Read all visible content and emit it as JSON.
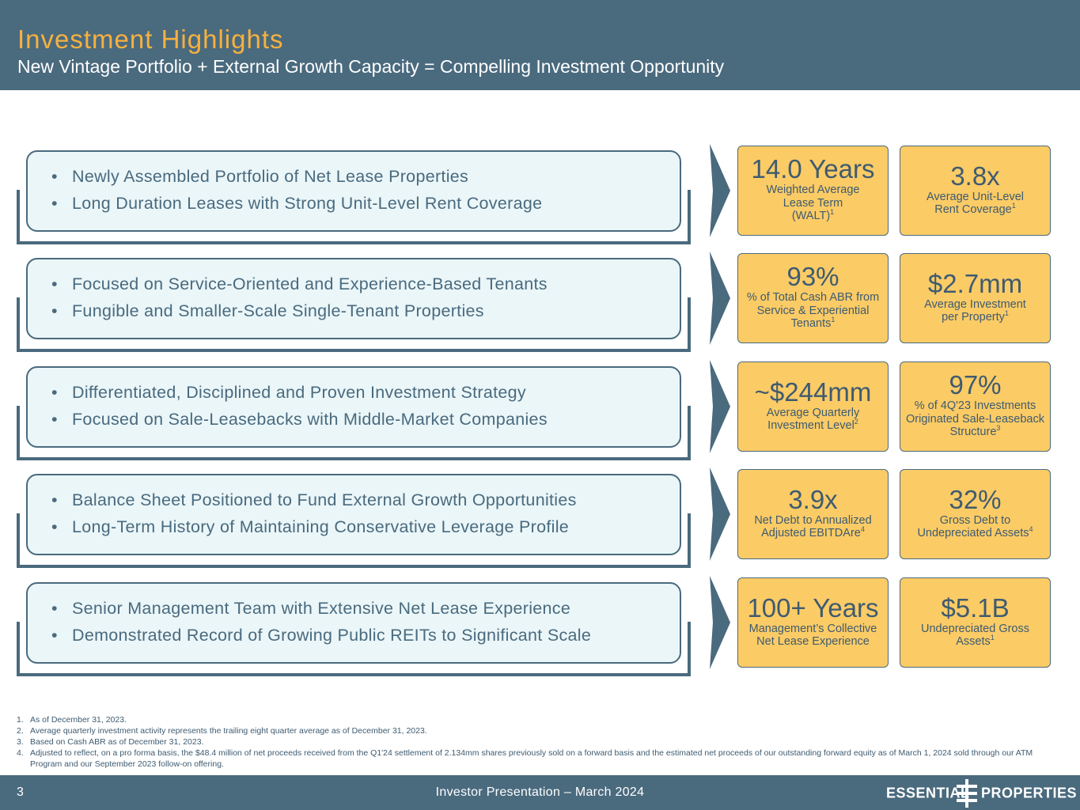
{
  "header": {
    "title": "Investment Highlights",
    "subtitle": "New Vintage Portfolio + External Growth Capacity = Compelling Investment Opportunity"
  },
  "rows": [
    {
      "bullets": [
        "Newly Assembled Portfolio of Net Lease Properties",
        "Long Duration Leases with Strong Unit-Level Rent Coverage"
      ],
      "cards": [
        {
          "value": "14.0 Years",
          "desc_lines": [
            "Weighted Average",
            "Lease Term"
          ],
          "desc_last": "(WALT)",
          "sup": "1"
        },
        {
          "value": "3.8x",
          "desc_lines": [
            "Average Unit-Level"
          ],
          "desc_last": "Rent Coverage",
          "sup": "1"
        }
      ]
    },
    {
      "bullets": [
        "Focused on Service-Oriented and Experience-Based Tenants",
        "Fungible and Smaller-Scale Single-Tenant Properties"
      ],
      "cards": [
        {
          "value": "93%",
          "desc_lines": [
            "% of Total Cash ABR from",
            "Service & Experiential"
          ],
          "desc_last": "Tenants",
          "sup": "1"
        },
        {
          "value": "$2.7mm",
          "desc_lines": [
            "Average Investment"
          ],
          "desc_last": "per Property",
          "sup": "1"
        }
      ]
    },
    {
      "bullets": [
        "Differentiated, Disciplined and Proven Investment Strategy",
        "Focused on Sale-Leasebacks with Middle-Market Companies"
      ],
      "cards": [
        {
          "value": "~$244mm",
          "desc_lines": [
            "Average Quarterly"
          ],
          "desc_last": "Investment Level",
          "sup": "2"
        },
        {
          "value": "97%",
          "desc_lines": [
            "% of 4Q'23 Investments",
            "Originated Sale-Leaseback"
          ],
          "desc_last": "Structure",
          "sup": "3"
        }
      ]
    },
    {
      "bullets": [
        "Balance Sheet Positioned to Fund External Growth Opportunities",
        "Long-Term History of Maintaining Conservative Leverage Profile"
      ],
      "cards": [
        {
          "value": "3.9x",
          "desc_lines": [
            "Net Debt to Annualized"
          ],
          "desc_last": "Adjusted EBITDAre",
          "sup": "4"
        },
        {
          "value": "32%",
          "desc_lines": [
            "Gross Debt to"
          ],
          "desc_last": "Undepreciated Assets",
          "sup": "4"
        }
      ]
    },
    {
      "bullets": [
        "Senior Management Team with Extensive Net Lease Experience",
        "Demonstrated Record of Growing Public REITs to Significant Scale"
      ],
      "cards": [
        {
          "value": "100+ Years",
          "desc_lines": [
            "Management’s Collective"
          ],
          "desc_last": "Net Lease Experience",
          "sup": ""
        },
        {
          "value": "$5.1B",
          "desc_lines": [
            "Undepreciated Gross"
          ],
          "desc_last": "Assets",
          "sup": "1"
        }
      ]
    }
  ],
  "footnotes": [
    {
      "num": "1.",
      "text": "As of December 31, 2023."
    },
    {
      "num": "2.",
      "text": "Average quarterly investment activity represents the trailing eight quarter average as of December 31, 2023."
    },
    {
      "num": "3.",
      "text": "Based on Cash ABR as of December 31, 2023."
    },
    {
      "num": "4.",
      "text": "Adjusted to reflect, on a pro forma basis, the $48.4 million of net proceeds received from the Q1'24 settlement of 2.134mm shares previously sold on a forward basis and the estimated net proceeds of our outstanding forward equity as of March 1, 2024 sold through our ATM Program and our September 2023 follow-on offering."
    }
  ],
  "footer": {
    "page_number": "3",
    "center_text": "Investor Presentation – March 2024",
    "logo_left": "ESSENTIAL",
    "logo_right": "PROPERTIES"
  },
  "colors": {
    "brand_slate": "#4a6a7e",
    "accent_gold": "#f6b13f",
    "card_yellow": "#fbcb66",
    "pill_bg": "#eaf6f8"
  }
}
